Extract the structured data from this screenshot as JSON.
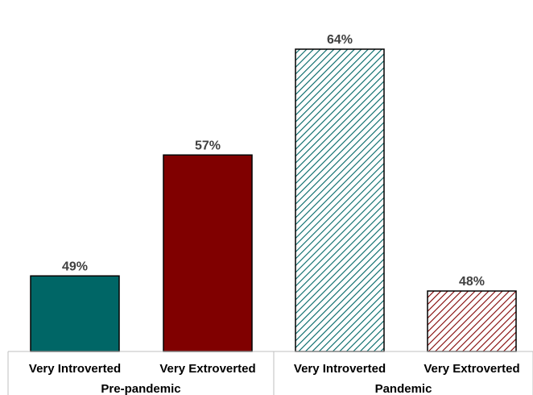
{
  "chart_data": {
    "type": "bar",
    "title": "",
    "xlabel": "",
    "ylabel": "",
    "ylim": [
      44,
      66
    ],
    "grid": false,
    "legend": "none",
    "groups": [
      {
        "label": "Pre-pandemic",
        "categories": [
          "Very Introverted",
          "Very Extroverted"
        ]
      },
      {
        "label": "Pandemic",
        "categories": [
          "Very Introverted",
          "Very Extroverted"
        ]
      }
    ],
    "bars": [
      {
        "group": "Pre-pandemic",
        "category": "Very Introverted",
        "value": 49,
        "label": "49%",
        "color": "#006666",
        "pattern": "solid"
      },
      {
        "group": "Pre-pandemic",
        "category": "Very Extroverted",
        "value": 57,
        "label": "57%",
        "color": "#800000",
        "pattern": "solid"
      },
      {
        "group": "Pandemic",
        "category": "Very Introverted",
        "value": 64,
        "label": "64%",
        "color": "#006666",
        "pattern": "hatched"
      },
      {
        "group": "Pandemic",
        "category": "Very Extroverted",
        "value": 48,
        "label": "48%",
        "color": "#800000",
        "pattern": "hatched"
      }
    ]
  }
}
